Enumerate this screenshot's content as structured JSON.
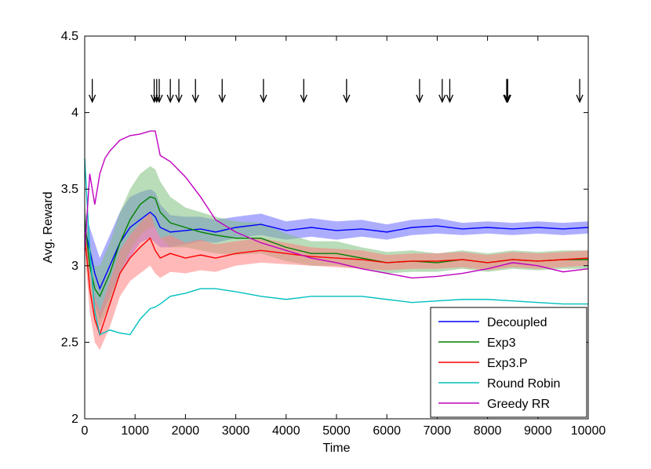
{
  "chart_data": {
    "type": "line",
    "xlabel": "Time",
    "ylabel": "Avg. Reward",
    "xlim": [
      0,
      10000
    ],
    "ylim": [
      2,
      4.5
    ],
    "x_ticks": [
      0,
      1000,
      2000,
      3000,
      4000,
      5000,
      6000,
      7000,
      8000,
      9000,
      10000
    ],
    "y_ticks": [
      2,
      2.5,
      3,
      3.5,
      4,
      4.5
    ],
    "grid": false,
    "legend_position": "bottom-right",
    "change_points": [
      150,
      1380,
      1430,
      1480,
      1700,
      1870,
      2200,
      2730,
      3550,
      4350,
      5200,
      6650,
      7100,
      7250,
      8380,
      8400,
      9830
    ],
    "change_point_y_range": [
      4.07,
      4.22
    ],
    "series": [
      {
        "name": "Decoupled",
        "color": "#0000ff",
        "band_color": "#6a6aff",
        "x": [
          0,
          100,
          200,
          300,
          500,
          700,
          900,
          1100,
          1300,
          1400,
          1500,
          1700,
          2000,
          2300,
          2600,
          3000,
          3500,
          4000,
          4500,
          5000,
          5500,
          6000,
          6500,
          7000,
          7500,
          8000,
          8500,
          9000,
          9500,
          10000
        ],
        "values": [
          3.25,
          3.1,
          2.95,
          2.85,
          3.0,
          3.15,
          3.25,
          3.3,
          3.35,
          3.32,
          3.25,
          3.22,
          3.23,
          3.24,
          3.22,
          3.25,
          3.27,
          3.23,
          3.25,
          3.23,
          3.24,
          3.22,
          3.25,
          3.26,
          3.24,
          3.25,
          3.24,
          3.25,
          3.24,
          3.25
        ],
        "lower": [
          3.15,
          2.95,
          2.75,
          2.65,
          2.8,
          2.95,
          3.05,
          3.15,
          3.18,
          3.15,
          3.12,
          3.12,
          3.14,
          3.16,
          3.15,
          3.18,
          3.2,
          3.17,
          3.19,
          3.17,
          3.19,
          3.17,
          3.2,
          3.21,
          3.2,
          3.21,
          3.2,
          3.21,
          3.2,
          3.21
        ],
        "upper": [
          3.35,
          3.25,
          3.15,
          3.05,
          3.2,
          3.35,
          3.45,
          3.48,
          3.5,
          3.48,
          3.4,
          3.33,
          3.32,
          3.32,
          3.3,
          3.32,
          3.34,
          3.29,
          3.31,
          3.29,
          3.3,
          3.27,
          3.3,
          3.31,
          3.28,
          3.29,
          3.28,
          3.29,
          3.28,
          3.29
        ]
      },
      {
        "name": "Exp3",
        "color": "#008000",
        "band_color": "#7fbf7f",
        "x": [
          0,
          100,
          200,
          300,
          500,
          700,
          900,
          1100,
          1300,
          1400,
          1500,
          1700,
          2000,
          2300,
          2600,
          3000,
          3500,
          4000,
          4500,
          5000,
          5500,
          6000,
          6500,
          7000,
          7500,
          8000,
          8500,
          9000,
          9500,
          10000
        ],
        "values": [
          3.3,
          3.0,
          2.85,
          2.8,
          2.95,
          3.15,
          3.3,
          3.4,
          3.45,
          3.44,
          3.35,
          3.28,
          3.25,
          3.22,
          3.2,
          3.18,
          3.18,
          3.12,
          3.08,
          3.08,
          3.05,
          3.02,
          3.03,
          3.02,
          3.04,
          3.02,
          3.04,
          3.03,
          3.04,
          3.04
        ],
        "lower": [
          3.2,
          2.85,
          2.7,
          2.6,
          2.75,
          2.95,
          3.1,
          3.2,
          3.25,
          3.25,
          3.18,
          3.12,
          3.12,
          3.1,
          3.08,
          3.07,
          3.08,
          3.03,
          3.0,
          3.0,
          2.98,
          2.95,
          2.96,
          2.96,
          2.98,
          2.96,
          2.98,
          2.97,
          2.98,
          2.98
        ],
        "upper": [
          3.4,
          3.15,
          3.0,
          3.0,
          3.15,
          3.35,
          3.5,
          3.6,
          3.65,
          3.63,
          3.55,
          3.45,
          3.38,
          3.35,
          3.32,
          3.29,
          3.28,
          3.21,
          3.16,
          3.16,
          3.12,
          3.09,
          3.1,
          3.08,
          3.1,
          3.08,
          3.1,
          3.09,
          3.1,
          3.1
        ]
      },
      {
        "name": "Exp3.P",
        "color": "#ff0000",
        "band_color": "#ff7f7f",
        "x": [
          0,
          100,
          200,
          300,
          500,
          700,
          900,
          1100,
          1300,
          1400,
          1500,
          1700,
          2000,
          2300,
          2600,
          3000,
          3500,
          4000,
          4500,
          5000,
          5500,
          6000,
          6500,
          7000,
          7500,
          8000,
          8500,
          9000,
          9500,
          10000
        ],
        "values": [
          3.2,
          2.85,
          2.65,
          2.55,
          2.75,
          2.95,
          3.05,
          3.12,
          3.18,
          3.1,
          3.05,
          3.08,
          3.05,
          3.07,
          3.05,
          3.08,
          3.1,
          3.08,
          3.06,
          3.05,
          3.04,
          3.02,
          3.03,
          3.03,
          3.04,
          3.02,
          3.04,
          3.03,
          3.04,
          3.05
        ],
        "lower": [
          3.1,
          2.7,
          2.5,
          2.45,
          2.6,
          2.8,
          2.9,
          2.95,
          3.0,
          2.95,
          2.92,
          2.96,
          2.95,
          2.97,
          2.96,
          3.0,
          3.02,
          3.01,
          3.0,
          2.99,
          2.98,
          2.97,
          2.98,
          2.98,
          2.99,
          2.97,
          2.99,
          2.98,
          2.99,
          3.0
        ],
        "upper": [
          3.3,
          3.0,
          2.8,
          2.7,
          2.9,
          3.1,
          3.2,
          3.28,
          3.35,
          3.25,
          3.18,
          3.2,
          3.15,
          3.17,
          3.14,
          3.16,
          3.18,
          3.15,
          3.12,
          3.11,
          3.1,
          3.07,
          3.08,
          3.08,
          3.09,
          3.07,
          3.09,
          3.08,
          3.09,
          3.1
        ]
      },
      {
        "name": "Round Robin",
        "color": "#00bfbf",
        "x": [
          0,
          100,
          200,
          300,
          500,
          700,
          900,
          1100,
          1300,
          1400,
          1500,
          1700,
          2000,
          2300,
          2600,
          3000,
          3500,
          4000,
          4500,
          5000,
          5500,
          6000,
          6500,
          7000,
          7500,
          8000,
          8500,
          9000,
          9500,
          10000
        ],
        "values": [
          3.7,
          3.1,
          2.7,
          2.55,
          2.58,
          2.56,
          2.55,
          2.65,
          2.72,
          2.73,
          2.75,
          2.8,
          2.82,
          2.85,
          2.85,
          2.83,
          2.8,
          2.78,
          2.8,
          2.8,
          2.8,
          2.78,
          2.76,
          2.77,
          2.78,
          2.78,
          2.77,
          2.76,
          2.75,
          2.75
        ]
      },
      {
        "name": "Greedy RR",
        "color": "#bf00bf",
        "x": [
          0,
          100,
          200,
          300,
          400,
          500,
          700,
          900,
          1100,
          1300,
          1400,
          1450,
          1500,
          1700,
          2000,
          2300,
          2600,
          3000,
          3500,
          4000,
          4500,
          5000,
          5500,
          6000,
          6500,
          7000,
          7500,
          8000,
          8500,
          9000,
          9500,
          10000
        ],
        "values": [
          3.1,
          3.6,
          3.4,
          3.6,
          3.7,
          3.75,
          3.82,
          3.85,
          3.86,
          3.88,
          3.88,
          3.8,
          3.72,
          3.68,
          3.58,
          3.45,
          3.3,
          3.22,
          3.15,
          3.1,
          3.05,
          3.02,
          2.98,
          2.95,
          2.92,
          2.93,
          2.95,
          2.98,
          3.02,
          3.0,
          2.96,
          2.98
        ]
      }
    ]
  }
}
